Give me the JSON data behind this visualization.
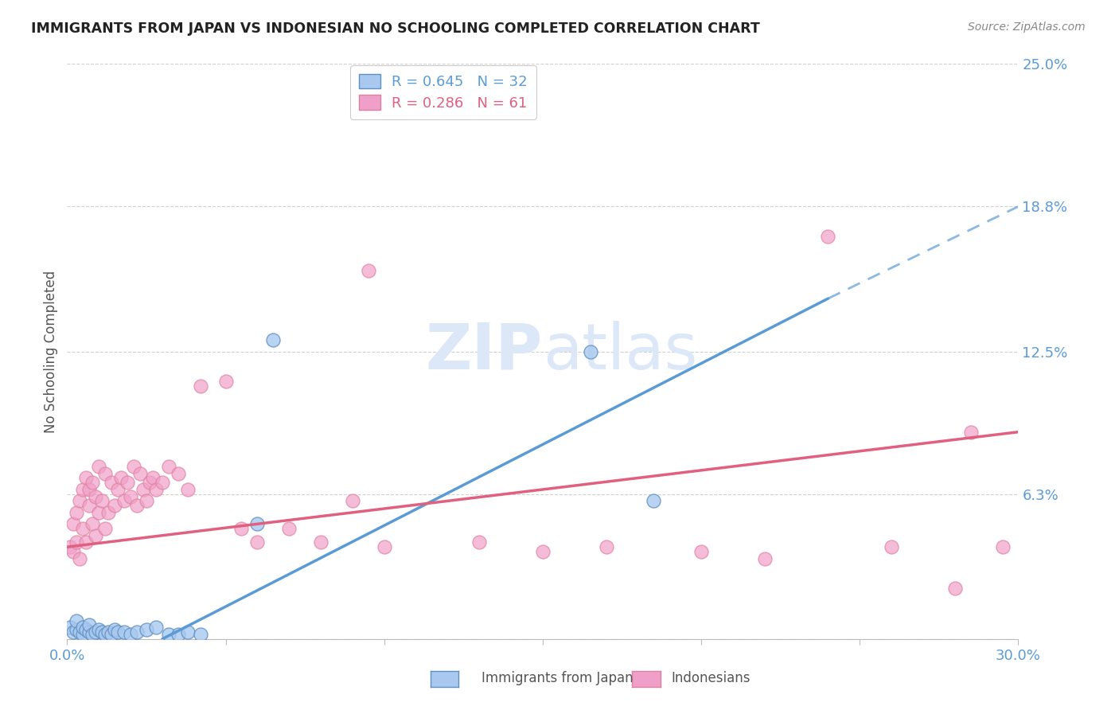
{
  "title": "IMMIGRANTS FROM JAPAN VS INDONESIAN NO SCHOOLING COMPLETED CORRELATION CHART",
  "source": "Source: ZipAtlas.com",
  "ylabel": "No Schooling Completed",
  "xlim": [
    0.0,
    0.3
  ],
  "ylim": [
    0.0,
    0.25
  ],
  "y_ticks": [
    0.0,
    0.063,
    0.125,
    0.188,
    0.25
  ],
  "y_tick_labels": [
    "",
    "6.3%",
    "12.5%",
    "18.8%",
    "25.0%"
  ],
  "japan_scatter": [
    [
      0.001,
      0.005
    ],
    [
      0.002,
      0.003
    ],
    [
      0.003,
      0.004
    ],
    [
      0.003,
      0.008
    ],
    [
      0.004,
      0.003
    ],
    [
      0.005,
      0.002
    ],
    [
      0.005,
      0.005
    ],
    [
      0.006,
      0.004
    ],
    [
      0.007,
      0.003
    ],
    [
      0.007,
      0.006
    ],
    [
      0.008,
      0.002
    ],
    [
      0.009,
      0.003
    ],
    [
      0.01,
      0.004
    ],
    [
      0.011,
      0.003
    ],
    [
      0.012,
      0.002
    ],
    [
      0.013,
      0.003
    ],
    [
      0.014,
      0.002
    ],
    [
      0.015,
      0.004
    ],
    [
      0.016,
      0.003
    ],
    [
      0.018,
      0.003
    ],
    [
      0.02,
      0.002
    ],
    [
      0.022,
      0.003
    ],
    [
      0.025,
      0.004
    ],
    [
      0.028,
      0.005
    ],
    [
      0.032,
      0.002
    ],
    [
      0.035,
      0.002
    ],
    [
      0.038,
      0.003
    ],
    [
      0.042,
      0.002
    ],
    [
      0.06,
      0.05
    ],
    [
      0.065,
      0.13
    ],
    [
      0.165,
      0.125
    ],
    [
      0.185,
      0.06
    ]
  ],
  "indonesia_scatter": [
    [
      0.001,
      0.04
    ],
    [
      0.002,
      0.038
    ],
    [
      0.002,
      0.05
    ],
    [
      0.003,
      0.042
    ],
    [
      0.003,
      0.055
    ],
    [
      0.004,
      0.035
    ],
    [
      0.004,
      0.06
    ],
    [
      0.005,
      0.048
    ],
    [
      0.005,
      0.065
    ],
    [
      0.006,
      0.042
    ],
    [
      0.006,
      0.07
    ],
    [
      0.007,
      0.058
    ],
    [
      0.007,
      0.065
    ],
    [
      0.008,
      0.05
    ],
    [
      0.008,
      0.068
    ],
    [
      0.009,
      0.045
    ],
    [
      0.009,
      0.062
    ],
    [
      0.01,
      0.055
    ],
    [
      0.01,
      0.075
    ],
    [
      0.011,
      0.06
    ],
    [
      0.012,
      0.048
    ],
    [
      0.012,
      0.072
    ],
    [
      0.013,
      0.055
    ],
    [
      0.014,
      0.068
    ],
    [
      0.015,
      0.058
    ],
    [
      0.016,
      0.065
    ],
    [
      0.017,
      0.07
    ],
    [
      0.018,
      0.06
    ],
    [
      0.019,
      0.068
    ],
    [
      0.02,
      0.062
    ],
    [
      0.021,
      0.075
    ],
    [
      0.022,
      0.058
    ],
    [
      0.023,
      0.072
    ],
    [
      0.024,
      0.065
    ],
    [
      0.025,
      0.06
    ],
    [
      0.026,
      0.068
    ],
    [
      0.027,
      0.07
    ],
    [
      0.028,
      0.065
    ],
    [
      0.03,
      0.068
    ],
    [
      0.032,
      0.075
    ],
    [
      0.035,
      0.072
    ],
    [
      0.038,
      0.065
    ],
    [
      0.042,
      0.11
    ],
    [
      0.05,
      0.112
    ],
    [
      0.055,
      0.048
    ],
    [
      0.06,
      0.042
    ],
    [
      0.07,
      0.048
    ],
    [
      0.08,
      0.042
    ],
    [
      0.09,
      0.06
    ],
    [
      0.095,
      0.16
    ],
    [
      0.1,
      0.04
    ],
    [
      0.13,
      0.042
    ],
    [
      0.15,
      0.038
    ],
    [
      0.17,
      0.04
    ],
    [
      0.2,
      0.038
    ],
    [
      0.22,
      0.035
    ],
    [
      0.24,
      0.175
    ],
    [
      0.26,
      0.04
    ],
    [
      0.28,
      0.022
    ],
    [
      0.295,
      0.04
    ],
    [
      0.285,
      0.09
    ]
  ],
  "japan_line_solid": {
    "x": [
      0.03,
      0.24
    ],
    "y": [
      0.0,
      0.148
    ]
  },
  "japan_line_dashed": {
    "x": [
      0.24,
      0.3
    ],
    "y": [
      0.148,
      0.188
    ]
  },
  "indonesia_line": {
    "x": [
      0.0,
      0.3
    ],
    "y": [
      0.04,
      0.09
    ]
  },
  "japan_line_color": "#5b9bd5",
  "indonesia_line_color": "#e06080",
  "japan_scatter_color": "#a8c8f0",
  "indonesia_scatter_color": "#f0a0c8",
  "background_color": "#ffffff",
  "watermark": "ZIPatlas",
  "watermark_color": "#dce8f8"
}
